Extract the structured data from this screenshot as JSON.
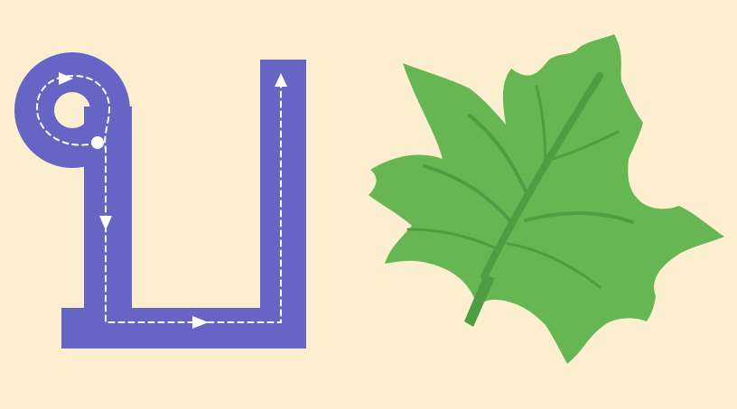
{
  "background_color": "#fcefd0",
  "letter_tracing": {
    "stroke_color": "#6664c4",
    "guide_color": "#ffffff",
    "icons": [
      "start-dot-icon",
      "arrow-right-icon",
      "arrow-down-icon",
      "arrow-up-icon"
    ]
  },
  "leaf": {
    "fill_color": "#66b653",
    "vein_color": "#4f9d42",
    "icon": "maple-leaf-icon"
  }
}
